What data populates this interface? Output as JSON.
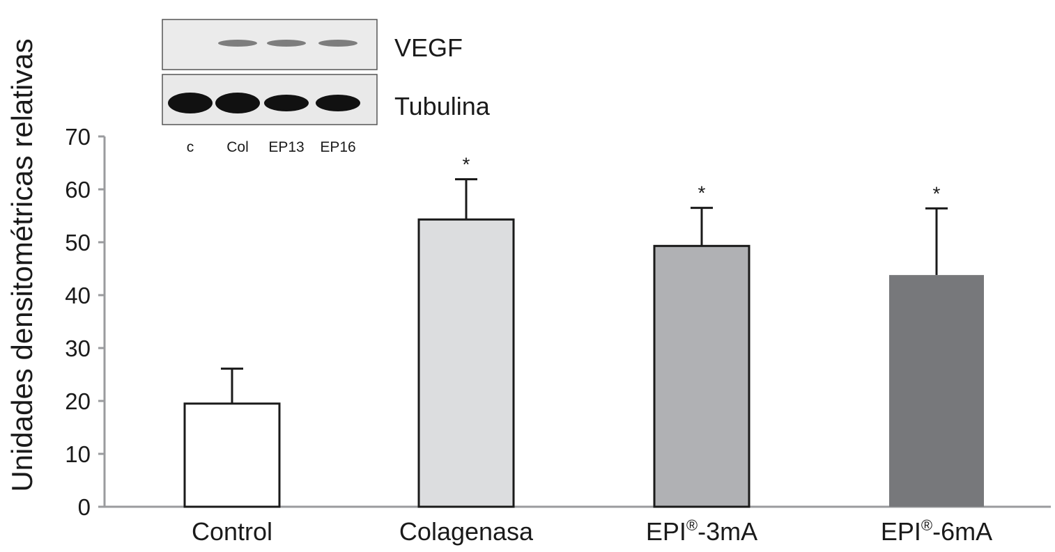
{
  "chart_data": {
    "type": "bar",
    "ylabel": "Unidades densitométricas relativas",
    "ylim": [
      0,
      70
    ],
    "yticks": [
      0,
      10,
      20,
      30,
      40,
      50,
      60,
      70
    ],
    "categories": [
      {
        "base": "EPI",
        "sup": "",
        "rest": "",
        "full": "Control",
        "label": "Control"
      },
      {
        "full": "Colagenasa",
        "label": "Colagenasa"
      },
      {
        "base": "EPI",
        "sup": "®",
        "rest": "-3mA",
        "full": "EPI®-3mA"
      },
      {
        "base": "EPI",
        "sup": "®",
        "rest": "-6mA",
        "full": "EPI®-6mA"
      }
    ],
    "series": [
      {
        "values": [
          19.5,
          54.3,
          49.3,
          43.8
        ],
        "errors": [
          6.6,
          7.6,
          7.2,
          12.6
        ],
        "significance": [
          "",
          "*",
          "*",
          "*"
        ]
      }
    ],
    "bar_colors": [
      "#ffffff",
      "#dcdddf",
      "#b0b1b4",
      "#77787b"
    ],
    "grid": false
  },
  "blot": {
    "bands": [
      "VEGF",
      "Tubulina"
    ],
    "lanes": [
      "c",
      "Col",
      "EP13",
      "EP16"
    ]
  }
}
